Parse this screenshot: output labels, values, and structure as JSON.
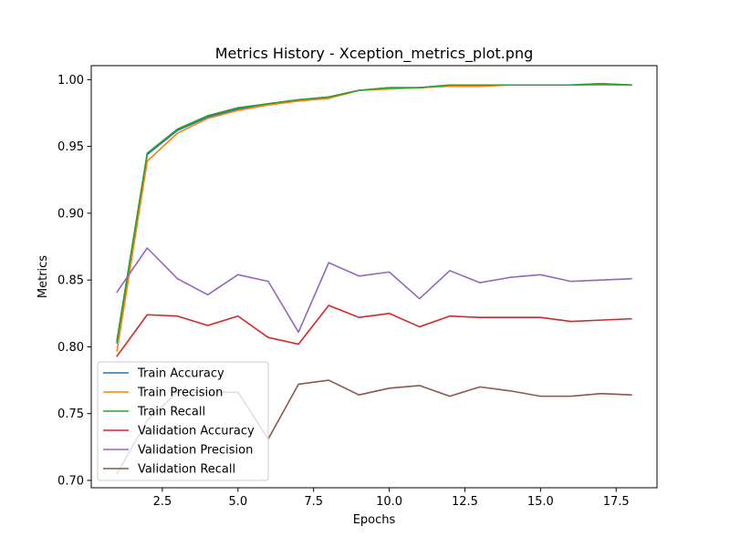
{
  "chart_data": {
    "type": "line",
    "title": "Metrics History - Xception_metrics_plot.png",
    "xlabel": "Epochs",
    "ylabel": "Metrics",
    "xlim": [
      0.15,
      18.85
    ],
    "ylim": [
      0.6945,
      1.0105
    ],
    "x_ticks": [
      2.5,
      5.0,
      7.5,
      10.0,
      12.5,
      15.0,
      17.5
    ],
    "x_tick_labels": [
      "2.5",
      "5.0",
      "7.5",
      "10.0",
      "12.5",
      "15.0",
      "17.5"
    ],
    "y_ticks": [
      0.7,
      0.75,
      0.8,
      0.85,
      0.9,
      0.95,
      1.0
    ],
    "y_tick_labels": [
      "0.70",
      "0.75",
      "0.80",
      "0.85",
      "0.90",
      "0.95",
      "1.00"
    ],
    "grid": false,
    "legend_position": "lower-left",
    "x": [
      1,
      2,
      3,
      4,
      5,
      6,
      7,
      8,
      9,
      10,
      11,
      12,
      13,
      14,
      15,
      16,
      17,
      18
    ],
    "series": [
      {
        "name": "Train Accuracy",
        "color": "#1f77b4",
        "values": [
          0.803,
          0.944,
          0.962,
          0.972,
          0.978,
          0.982,
          0.985,
          0.987,
          0.992,
          0.994,
          0.994,
          0.996,
          0.996,
          0.996,
          0.996,
          0.996,
          0.997,
          0.996
        ]
      },
      {
        "name": "Train Precision",
        "color": "#ff7f0e",
        "values": [
          0.797,
          0.939,
          0.96,
          0.971,
          0.977,
          0.981,
          0.984,
          0.986,
          0.992,
          0.993,
          0.994,
          0.995,
          0.995,
          0.996,
          0.996,
          0.996,
          0.996,
          0.996
        ]
      },
      {
        "name": "Train Recall",
        "color": "#2ca02c",
        "values": [
          0.805,
          0.945,
          0.963,
          0.973,
          0.979,
          0.982,
          0.985,
          0.987,
          0.992,
          0.994,
          0.994,
          0.996,
          0.996,
          0.996,
          0.996,
          0.996,
          0.997,
          0.996
        ]
      },
      {
        "name": "Validation Accuracy",
        "color": "#d62728",
        "values": [
          0.793,
          0.824,
          0.823,
          0.816,
          0.823,
          0.807,
          0.802,
          0.831,
          0.822,
          0.825,
          0.815,
          0.823,
          0.822,
          0.822,
          0.822,
          0.819,
          0.82,
          0.821
        ]
      },
      {
        "name": "Validation Precision",
        "color": "#9467bd",
        "values": [
          0.841,
          0.874,
          0.851,
          0.839,
          0.854,
          0.849,
          0.811,
          0.863,
          0.853,
          0.856,
          0.836,
          0.857,
          0.848,
          0.852,
          0.854,
          0.849,
          0.85,
          0.851
        ]
      },
      {
        "name": "Validation Recall",
        "color": "#8c564b",
        "values": [
          0.705,
          0.745,
          0.766,
          0.766,
          0.766,
          0.731,
          0.772,
          0.775,
          0.764,
          0.769,
          0.771,
          0.763,
          0.77,
          0.767,
          0.763,
          0.763,
          0.765,
          0.764
        ]
      }
    ]
  }
}
